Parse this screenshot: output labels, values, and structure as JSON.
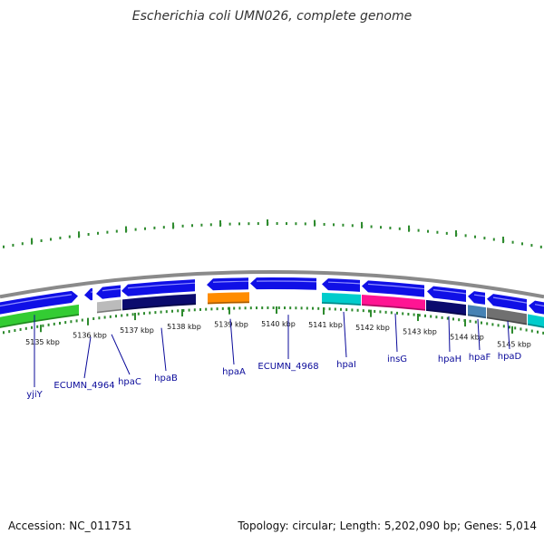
{
  "title": "Escherichia coli UMN026, complete genome",
  "footer": {
    "accession": "Accession: NC_011751",
    "topology": "Topology: circular; Length: 5,202,090 bp; Genes: 5,014"
  },
  "colors": {
    "gene_blue": "#1010e6",
    "backbone": "#8a8a8a",
    "tick_green": "#2e8b2e",
    "label_blue": "#0a0a9a"
  },
  "kbp_labels": [
    "5135 kbp",
    "5136 kbp",
    "5137 kbp",
    "5138 kbp",
    "5139 kbp",
    "5140 kbp",
    "5141 kbp",
    "5142 kbp",
    "5143 kbp",
    "5144 kbp",
    "5145 kbp"
  ],
  "genes": [
    {
      "name": "yjiY",
      "color": "#33cc33"
    },
    {
      "name": "ECUMN_4964",
      "color": "#bbbbbb"
    },
    {
      "name": "hpaC",
      "color": "#bbbbbb"
    },
    {
      "name": "hpaB",
      "color": "#0b0b6e"
    },
    {
      "name": "hpaA",
      "color": "#ff8c00"
    },
    {
      "name": "ECUMN_4968",
      "color": "#1010e6"
    },
    {
      "name": "hpaI",
      "color": "#00cccc"
    },
    {
      "name": "insG",
      "color": "#ff1493"
    },
    {
      "name": "hpaH",
      "color": "#0b0b6e"
    },
    {
      "name": "hpaF",
      "color": "#4682b4"
    },
    {
      "name": "hpaD",
      "color": "#707070"
    }
  ]
}
